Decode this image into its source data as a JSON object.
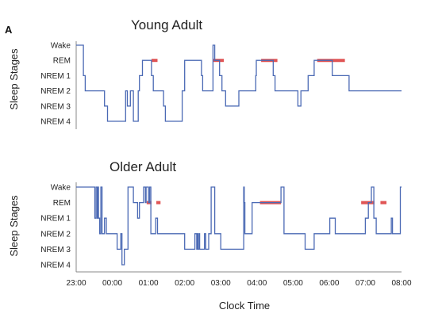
{
  "panel_label": "A",
  "x_axis_label": "Clock Time",
  "colors": {
    "line": "#4a69b4",
    "rem": "#e05555"
  },
  "chart_data": [
    {
      "type": "line",
      "title": "Young Adult",
      "ylabel": "Sleep Stages",
      "y_categories": [
        "Wake",
        "REM",
        "NREM 1",
        "NREM 2",
        "NREM 3",
        "NREM 4"
      ],
      "xlim": [
        "23:00",
        "08:00"
      ],
      "series": [
        {
          "x": [
            "23:00",
            "23:12",
            "23:15",
            "23:20",
            "23:47",
            "23:52",
            "00:22",
            "00:25",
            "00:30",
            "00:35",
            "00:43",
            "00:45",
            "00:50",
            "01:05",
            "01:08",
            "01:10",
            "01:25",
            "01:28",
            "01:32",
            "01:40",
            "01:56",
            "02:00",
            "02:28",
            "02:30",
            "02:47",
            "02:50",
            "02:58",
            "03:02",
            "03:04",
            "03:08",
            "03:20",
            "03:23",
            "03:30",
            "03:58",
            "03:59",
            "04:07",
            "04:27",
            "04:30",
            "04:33",
            "04:46",
            "04:48",
            "04:51",
            "05:04",
            "05:08",
            "05:13",
            "05:25",
            "05:35",
            "05:40",
            "05:58",
            "06:00",
            "06:05",
            "06:33",
            "06:37",
            "06:40",
            "06:55",
            "08:00"
          ],
          "y": [
            "Wake",
            "NREM 1",
            "NREM 2",
            "NREM 2",
            "NREM 3",
            "NREM 4",
            "NREM 2",
            "NREM 3",
            "NREM 2",
            "NREM 4",
            "NREM 2",
            "NREM 1",
            "REM",
            "NREM 1",
            "NREM 2",
            "NREM 2",
            "NREM 3",
            "NREM 4",
            "NREM 4",
            "NREM 4",
            "NREM 2",
            "REM",
            "NREM 1",
            "NREM 2",
            "Wake",
            "REM",
            "NREM 1",
            "NREM 2",
            "NREM 2",
            "NREM 3",
            "NREM 3",
            "NREM 3",
            "NREM 2",
            "NREM 1",
            "REM",
            "REM",
            "NREM 1",
            "NREM 2",
            "NREM 2",
            "NREM 2",
            "NREM 2",
            "NREM 2",
            "NREM 2",
            "NREM 3",
            "NREM 2",
            "NREM 1",
            "REM",
            "REM",
            "REM",
            "REM",
            "NREM 1",
            "NREM 2",
            "NREM 2",
            "NREM 2",
            "NREM 2",
            "NREM 2"
          ]
        }
      ],
      "rem_segments": [
        [
          "01:05",
          "01:15"
        ],
        [
          "02:47",
          "03:05"
        ],
        [
          "04:07",
          "04:34"
        ],
        [
          "05:40",
          "06:26"
        ]
      ]
    },
    {
      "type": "line",
      "title": "Older Adult",
      "ylabel": "Sleep Stages",
      "y_categories": [
        "Wake",
        "REM",
        "NREM 1",
        "NREM 2",
        "NREM 3",
        "NREM 4"
      ],
      "x_ticks": [
        "23:00",
        "00:00",
        "01:00",
        "02:00",
        "03:00",
        "04:00",
        "05:00",
        "06:00",
        "07:00",
        "08:00"
      ],
      "xlim": [
        "23:00",
        "08:00"
      ],
      "series": [
        {
          "x": [
            "23:00",
            "23:30",
            "23:31",
            "23:33",
            "23:35",
            "23:36",
            "23:37",
            "23:39",
            "23:41",
            "23:43",
            "23:47",
            "23:50",
            "23:51",
            "23:54",
            "23:57",
            "24:00",
            "24:05",
            "00:08",
            "00:12",
            "00:14",
            "00:16",
            "00:20",
            "00:25",
            "00:26",
            "00:31",
            "00:35",
            "00:38",
            "00:42",
            "00:44",
            "00:45",
            "00:52",
            "00:55",
            "00:56",
            "01:00",
            "01:02",
            "01:04",
            "01:07",
            "01:10",
            "01:12",
            "01:15",
            "01:16",
            "01:18",
            "01:20",
            "01:25",
            "01:30",
            "02:00",
            "02:17",
            "02:20",
            "02:21",
            "02:22",
            "02:24",
            "02:25",
            "02:28",
            "02:30",
            "02:33",
            "02:35",
            "02:38",
            "02:40",
            "02:44",
            "02:50",
            "03:00",
            "03:05",
            "03:10",
            "03:30",
            "03:38",
            "03:39",
            "03:40",
            "03:47",
            "03:52",
            "04:00",
            "04:05",
            "04:10",
            "04:25",
            "04:35",
            "04:40",
            "04:45",
            "04:51",
            "04:56",
            "04:58",
            "05:00",
            "05:10",
            "05:16",
            "05:20",
            "05:35",
            "05:40",
            "06:00",
            "06:01",
            "06:10",
            "06:12",
            "06:20",
            "06:30",
            "06:38",
            "06:45",
            "06:53",
            "07:00",
            "07:05",
            "07:10",
            "07:14",
            "07:18",
            "07:30",
            "07:35",
            "07:38",
            "07:43",
            "07:45",
            "07:58",
            "08:00"
          ],
          "y": [
            "Wake",
            "Wake",
            "NREM 1",
            "Wake",
            "NREM 1",
            "Wake",
            "NREM 1",
            "NREM 2",
            "Wake",
            "NREM 2",
            "NREM 1",
            "NREM 2",
            "NREM 2",
            "NREM 2",
            "NREM 2",
            "NREM 2",
            "NREM 2",
            "NREM 3",
            "NREM 3",
            "NREM 2",
            "NREM 4",
            "NREM 3",
            "NREM 3",
            "Wake",
            "Wake",
            "REM",
            "REM",
            "NREM 1",
            "NREM 1",
            "REM",
            "Wake",
            "REM",
            "Wake",
            "REM",
            "Wake",
            "NREM 2",
            "NREM 2",
            "NREM 2",
            "NREM 1",
            "NREM 2",
            "NREM 2",
            "NREM 2",
            "NREM 2",
            "NREM 2",
            "NREM 2",
            "NREM 3",
            "NREM 2",
            "NREM 3",
            "NREM 2",
            "NREM 3",
            "NREM 2",
            "NREM 3",
            "NREM 3",
            "NREM 3",
            "NREM 2",
            "NREM 3",
            "NREM 3",
            "NREM 2",
            "Wake",
            "NREM 2",
            "NREM 3",
            "NREM 3",
            "NREM 3",
            "NREM 3",
            "Wake",
            "REM",
            "NREM 2",
            "NREM 2",
            "REM",
            "REM",
            "REM",
            "REM",
            "REM",
            "REM",
            "Wake",
            "NREM 2",
            "NREM 2",
            "NREM 2",
            "NREM 2",
            "NREM 2",
            "NREM 2",
            "NREM 2",
            "NREM 3",
            "NREM 2",
            "NREM 2",
            "NREM 2",
            "NREM 1",
            "NREM 2",
            "NREM 2",
            "NREM 2",
            "NREM 2",
            "NREM 2",
            "NREM 2",
            "NREM 2",
            "NREM 1",
            "REM",
            "Wake",
            "NREM 1",
            "NREM 2",
            "NREM 2",
            "NREM 2",
            "NREM 2",
            "NREM 1",
            "NREM 2",
            "Wake",
            "Wake"
          ]
        }
      ],
      "rem_segments": [
        [
          "00:57",
          "01:05"
        ],
        [
          "01:13",
          "01:20"
        ],
        [
          "04:05",
          "04:40"
        ],
        [
          "06:53",
          "07:15"
        ],
        [
          "07:25",
          "07:35"
        ]
      ]
    }
  ]
}
